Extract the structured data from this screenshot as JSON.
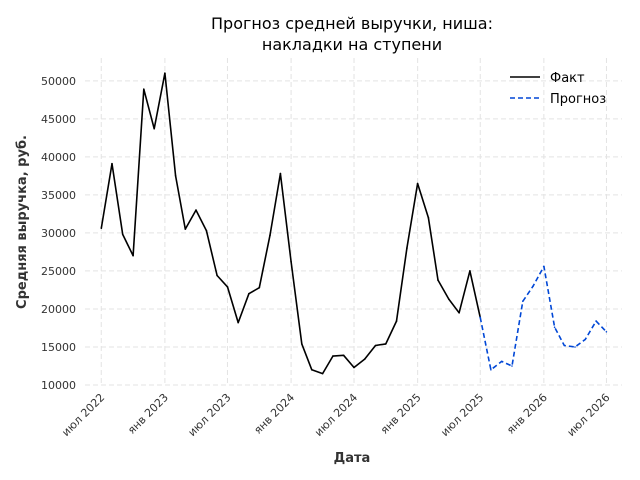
{
  "chart_data": {
    "type": "line",
    "title_lines": [
      "Прогноз средней выручки, ниша:",
      "накладки на ступени"
    ],
    "xlabel": "Дата",
    "ylabel": "Средняя выручка, руб.",
    "ylim": [
      10000,
      53000
    ],
    "xlim": [
      "2022-05-15",
      "2026-08-15"
    ],
    "yticks": [
      10000,
      15000,
      20000,
      25000,
      30000,
      35000,
      40000,
      45000,
      50000
    ],
    "xticks": [
      {
        "date": "2022-07-01",
        "label": "июл 2022"
      },
      {
        "date": "2023-01-01",
        "label": "янв 2023"
      },
      {
        "date": "2023-07-01",
        "label": "июл 2023"
      },
      {
        "date": "2024-01-01",
        "label": "янв 2024"
      },
      {
        "date": "2024-07-01",
        "label": "июл 2024"
      },
      {
        "date": "2025-01-01",
        "label": "янв 2025"
      },
      {
        "date": "2025-07-01",
        "label": "июл 2025"
      },
      {
        "date": "2026-01-01",
        "label": "янв 2026"
      },
      {
        "date": "2026-07-01",
        "label": "июл 2026"
      }
    ],
    "grid": true,
    "legend_position": "top-right",
    "series": [
      {
        "name": "Факт",
        "color": "#000000",
        "style": "solid",
        "points": [
          [
            "2022-07-01",
            30600
          ],
          [
            "2022-08-01",
            39100
          ],
          [
            "2022-09-01",
            29800
          ],
          [
            "2022-10-01",
            27000
          ],
          [
            "2022-11-01",
            48900
          ],
          [
            "2022-12-01",
            43700
          ],
          [
            "2023-01-01",
            51000
          ],
          [
            "2023-02-01",
            37500
          ],
          [
            "2023-03-01",
            30500
          ],
          [
            "2023-04-01",
            33000
          ],
          [
            "2023-05-01",
            30300
          ],
          [
            "2023-06-01",
            24400
          ],
          [
            "2023-07-01",
            22900
          ],
          [
            "2023-08-01",
            18200
          ],
          [
            "2023-09-01",
            22000
          ],
          [
            "2023-10-01",
            22800
          ],
          [
            "2023-11-01",
            29700
          ],
          [
            "2023-12-01",
            37800
          ],
          [
            "2024-01-01",
            26200
          ],
          [
            "2024-02-01",
            15400
          ],
          [
            "2024-03-01",
            12000
          ],
          [
            "2024-04-01",
            11500
          ],
          [
            "2024-05-01",
            13800
          ],
          [
            "2024-06-01",
            13900
          ],
          [
            "2024-07-01",
            12300
          ],
          [
            "2024-08-01",
            13400
          ],
          [
            "2024-09-01",
            15200
          ],
          [
            "2024-10-01",
            15400
          ],
          [
            "2024-11-01",
            18400
          ],
          [
            "2024-12-01",
            28000
          ],
          [
            "2025-01-01",
            36500
          ],
          [
            "2025-02-01",
            32000
          ],
          [
            "2025-03-01",
            23800
          ],
          [
            "2025-04-01",
            21300
          ],
          [
            "2025-05-01",
            19500
          ],
          [
            "2025-06-01",
            25000
          ],
          [
            "2025-07-01",
            18900
          ]
        ]
      },
      {
        "name": "Прогноз",
        "color": "#0047d6",
        "style": "dashed",
        "points": [
          [
            "2025-07-01",
            18900
          ],
          [
            "2025-08-01",
            12000
          ],
          [
            "2025-09-01",
            13100
          ],
          [
            "2025-10-01",
            12500
          ],
          [
            "2025-11-01",
            21000
          ],
          [
            "2025-12-01",
            23000
          ],
          [
            "2026-01-01",
            25600
          ],
          [
            "2026-02-01",
            17600
          ],
          [
            "2026-03-01",
            15200
          ],
          [
            "2026-04-01",
            15000
          ],
          [
            "2026-05-01",
            16000
          ],
          [
            "2026-06-01",
            18400
          ],
          [
            "2026-07-01",
            17000
          ]
        ]
      }
    ]
  }
}
